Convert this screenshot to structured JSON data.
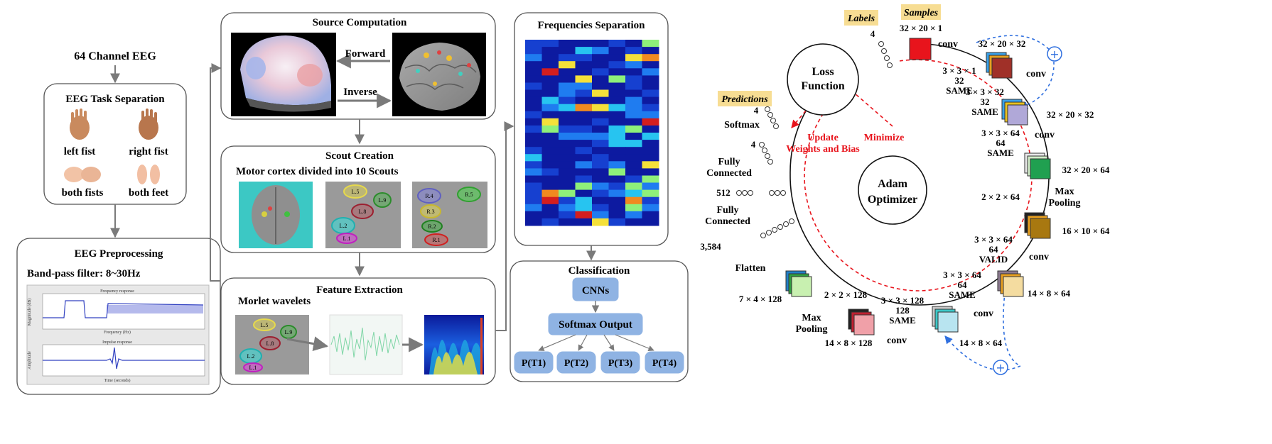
{
  "left": {
    "eeg_input": "64 Channel EEG",
    "task_separation": {
      "title": "EEG Task Separation",
      "tasks": [
        "left fist",
        "right fist",
        "both fists",
        "both feet"
      ]
    },
    "preprocessing": {
      "title": "EEG Preprocessing",
      "filter": "Band-pass filter: 8~30Hz",
      "plot_top_title": "Frequency response",
      "plot_top_xlabel": "Frequency (Hz)",
      "plot_top_ylabel": "Magnitude (dB)",
      "plot_bottom_title": "Impulse response",
      "plot_bottom_xlabel": "Time (seconds)",
      "plot_bottom_ylabel": "Amplitude"
    }
  },
  "middle": {
    "source": {
      "title": "Source Computation",
      "forward": "Forward",
      "inverse": "Inverse"
    },
    "scout": {
      "title": "Scout Creation",
      "subtitle": "Motor cortex divided into 10 Scouts",
      "left_scouts": [
        "L.5",
        "L.9",
        "L.8",
        "L.2",
        "L.1"
      ],
      "right_scouts": [
        "R.4",
        "R.5",
        "R.3",
        "R.2",
        "R.1"
      ]
    },
    "feature": {
      "title": "Feature Extraction",
      "subtitle": "Morlet wavelets",
      "scouts": [
        "L.5",
        "L.9",
        "L.8",
        "L.2",
        "L.1"
      ]
    }
  },
  "right_panel": {
    "frequencies": {
      "title": "Frequencies Separation"
    },
    "classification": {
      "title": "Classification",
      "cnn": "CNNs",
      "softmax": "Softmax Output",
      "outputs": [
        "P(T1)",
        "P(T2)",
        "P(T3)",
        "P(T4)"
      ]
    }
  },
  "cnn": {
    "labels_tag": "Labels",
    "samples_tag": "Samples",
    "predictions_tag": "Predictions",
    "loss": [
      "Loss",
      "Function"
    ],
    "optimizer": [
      "Adam",
      "Optimizer"
    ],
    "update": [
      "Update",
      "Weights and Bias"
    ],
    "minimize": "Minimize",
    "label_count": "4",
    "input_dims": "32 × 20 × 1",
    "conv1": {
      "op": "conv",
      "out": "32 × 20 × 32",
      "params": [
        "3 × 3 × 1",
        "32",
        "SAME"
      ]
    },
    "conv2": {
      "op": "conv",
      "out": "32 × 20 × 32",
      "params": [
        "3 × 3 × 32",
        "32",
        "SAME"
      ]
    },
    "conv3": {
      "op": "conv",
      "out": "32 × 20 × 64",
      "params": [
        "3 × 3 × 64",
        "64",
        "SAME"
      ]
    },
    "pool1": {
      "op": [
        "Max",
        "Pooling"
      ],
      "out": "16 × 10 × 64",
      "params": "2 × 2 × 64"
    },
    "conv4": {
      "op": "conv",
      "out": "14 × 8 × 64",
      "params": [
        "3 × 3 × 64",
        "64",
        "VALID"
      ]
    },
    "conv5": {
      "op": "conv",
      "out": "14 × 8 × 64",
      "params": [
        "3 × 3 × 64",
        "64",
        "SAME"
      ]
    },
    "conv6": {
      "op": "conv",
      "out": "14 × 8 × 128",
      "params": [
        "3 × 3 × 128",
        "128",
        "SAME"
      ]
    },
    "pool2": {
      "op": [
        "Max",
        "Pooling"
      ],
      "out": "7 × 4 × 128",
      "params": "2 × 2 × 128"
    },
    "flatten": "Flatten",
    "flatten_count": "3,584",
    "fc1": [
      "Fully",
      "Connected"
    ],
    "fc1_count": "512",
    "fc2": [
      "Fully",
      "Connected"
    ],
    "fc2_count": "4",
    "softmax": "Softmax",
    "softmax_count": "4"
  },
  "colors": {
    "red": "#e8141c",
    "dashed_red": "#e8141c",
    "dashed_blue": "#2f6fdf",
    "button_blue": "#8fb3e3",
    "tag_yellow": "#f7dd93"
  }
}
